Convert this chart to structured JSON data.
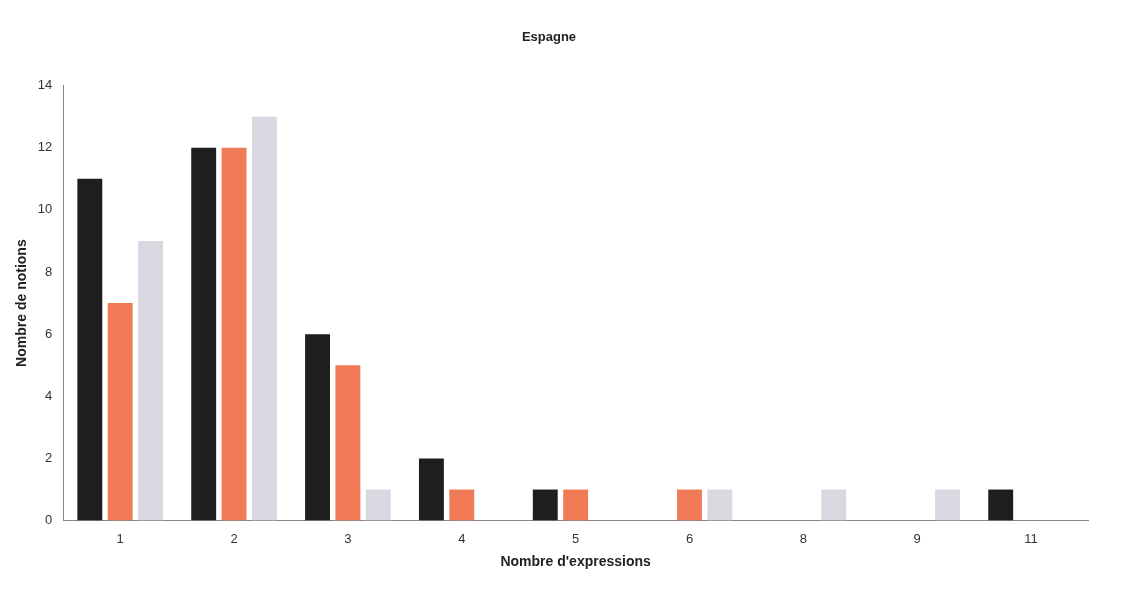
{
  "chart_data": {
    "type": "bar",
    "title": "Espagne",
    "xlabel": "Nombre d'expressions",
    "ylabel": "Nombre de notions",
    "categories": [
      "1",
      "2",
      "3",
      "4",
      "5",
      "6",
      "8",
      "9",
      "11"
    ],
    "series": [
      {
        "color": "#1e1e1e",
        "values": [
          11,
          12,
          6,
          2,
          1,
          0,
          0,
          0,
          1
        ]
      },
      {
        "color": "#f07a55",
        "values": [
          7,
          12,
          5,
          1,
          1,
          1,
          0,
          0,
          0
        ]
      },
      {
        "color": "#d8d8e0",
        "values": [
          9,
          13,
          1,
          0,
          0,
          1,
          1,
          1,
          0
        ]
      }
    ],
    "ylim": [
      0,
      14
    ],
    "yticks": [
      0,
      2,
      4,
      6,
      8,
      10,
      12,
      14
    ],
    "grid": false,
    "legend": false
  }
}
